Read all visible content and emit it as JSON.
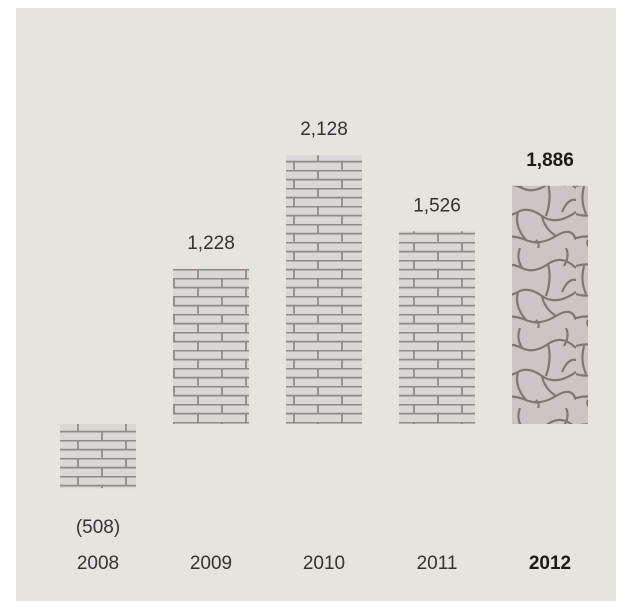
{
  "colors": {
    "background": "#e7e3de",
    "brick_mortar": "#8f8a86",
    "brick_face": "#d9d8d6",
    "stone_mortar": "#7e7773",
    "stone_face": "#cbc6c3"
  },
  "chart_data": {
    "type": "bar",
    "categories": [
      "2008",
      "2009",
      "2010",
      "2011",
      "2012"
    ],
    "values": [
      -508,
      1228,
      2128,
      1526,
      1886
    ],
    "value_labels": [
      "(508)",
      "1,228",
      "2,128",
      "1,526",
      "1,886"
    ],
    "highlight_index": 4,
    "bar_patterns": [
      "brick",
      "brick",
      "brick",
      "brick",
      "stone"
    ],
    "title": "",
    "xlabel": "",
    "ylabel": "",
    "ylim": [
      -508,
      2128
    ],
    "grid": false,
    "legend": "none"
  }
}
